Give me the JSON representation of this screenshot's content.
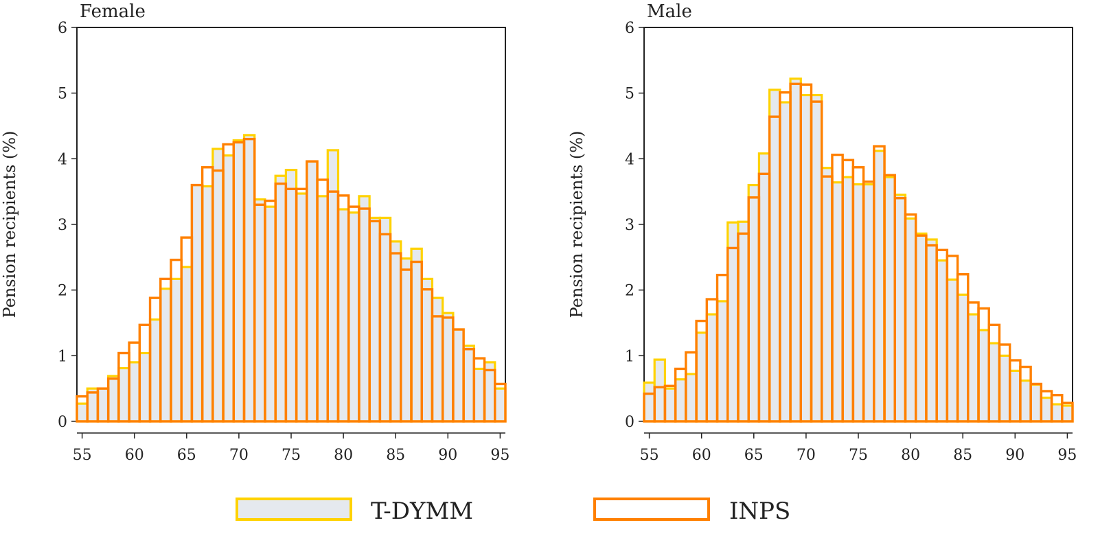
{
  "legend": {
    "position": "bottom",
    "items": [
      {
        "label": "T-DYMM",
        "stroke": "#FFD200",
        "fill": "#E5E9EE"
      },
      {
        "label": "INPS",
        "stroke": "#FF8000",
        "fill": "none"
      }
    ]
  },
  "chart_data": [
    {
      "type": "bar",
      "title": "Female",
      "xlabel": "",
      "ylabel": "Pension recipients (%)",
      "xlim": [
        54.5,
        95.5
      ],
      "ylim": [
        0,
        6
      ],
      "xticks": [
        55,
        60,
        65,
        70,
        75,
        80,
        85,
        90,
        95
      ],
      "yticks": [
        0,
        1,
        2,
        3,
        4,
        5,
        6
      ],
      "grid": false,
      "x": [
        55,
        56,
        57,
        58,
        59,
        60,
        61,
        62,
        63,
        64,
        65,
        66,
        67,
        68,
        69,
        70,
        71,
        72,
        73,
        74,
        75,
        76,
        77,
        78,
        79,
        80,
        81,
        82,
        83,
        84,
        85,
        86,
        87,
        88,
        89,
        90,
        91,
        92,
        93,
        94,
        95
      ],
      "series": [
        {
          "name": "T-DYMM",
          "values": [
            0.27,
            0.5,
            0.5,
            0.69,
            0.81,
            0.9,
            1.04,
            1.55,
            2.02,
            2.17,
            2.35,
            3.6,
            3.58,
            4.15,
            4.05,
            4.28,
            4.36,
            3.38,
            3.27,
            3.74,
            3.83,
            3.47,
            3.96,
            3.43,
            4.13,
            3.23,
            3.18,
            3.43,
            3.1,
            3.1,
            2.74,
            2.48,
            2.63,
            2.17,
            1.88,
            1.65,
            1.4,
            1.15,
            0.8,
            0.9,
            0.5
          ]
        },
        {
          "name": "INPS",
          "values": [
            0.38,
            0.44,
            0.5,
            0.65,
            1.04,
            1.2,
            1.47,
            1.88,
            2.17,
            2.46,
            2.8,
            3.6,
            3.87,
            3.82,
            4.22,
            4.25,
            4.3,
            3.3,
            3.36,
            3.62,
            3.54,
            3.54,
            3.96,
            3.68,
            3.5,
            3.44,
            3.27,
            3.24,
            3.05,
            2.85,
            2.56,
            2.31,
            2.43,
            2.01,
            1.6,
            1.58,
            1.4,
            1.1,
            0.96,
            0.78,
            0.57
          ]
        }
      ]
    },
    {
      "type": "bar",
      "title": "Male",
      "xlabel": "",
      "ylabel": "Pension recipients (%)",
      "xlim": [
        54.5,
        95.5
      ],
      "ylim": [
        0,
        6
      ],
      "xticks": [
        55,
        60,
        65,
        70,
        75,
        80,
        85,
        90,
        95
      ],
      "yticks": [
        0,
        1,
        2,
        3,
        4,
        5,
        6
      ],
      "grid": false,
      "x": [
        55,
        56,
        57,
        58,
        59,
        60,
        61,
        62,
        63,
        64,
        65,
        66,
        67,
        68,
        69,
        70,
        71,
        72,
        73,
        74,
        75,
        76,
        77,
        78,
        79,
        80,
        81,
        82,
        83,
        84,
        85,
        86,
        87,
        88,
        89,
        90,
        91,
        92,
        93,
        94,
        95
      ],
      "series": [
        {
          "name": "T-DYMM",
          "values": [
            0.59,
            0.94,
            0.5,
            0.64,
            0.72,
            1.35,
            1.63,
            1.83,
            3.03,
            3.04,
            3.6,
            4.08,
            5.05,
            4.86,
            5.22,
            4.97,
            4.97,
            3.86,
            3.64,
            3.72,
            3.61,
            3.61,
            4.12,
            3.72,
            3.45,
            3.09,
            2.86,
            2.77,
            2.45,
            2.16,
            1.93,
            1.63,
            1.39,
            1.19,
            1.0,
            0.77,
            0.62,
            0.56,
            0.36,
            0.26,
            0.24
          ]
        },
        {
          "name": "INPS",
          "values": [
            0.42,
            0.52,
            0.54,
            0.8,
            1.05,
            1.53,
            1.86,
            2.23,
            2.64,
            2.86,
            3.41,
            3.77,
            4.64,
            5.01,
            5.14,
            5.13,
            4.87,
            3.73,
            4.06,
            3.98,
            3.87,
            3.65,
            4.19,
            3.75,
            3.4,
            3.15,
            2.83,
            2.68,
            2.61,
            2.52,
            2.24,
            1.81,
            1.72,
            1.47,
            1.17,
            0.93,
            0.83,
            0.57,
            0.46,
            0.4,
            0.28
          ]
        }
      ]
    }
  ]
}
